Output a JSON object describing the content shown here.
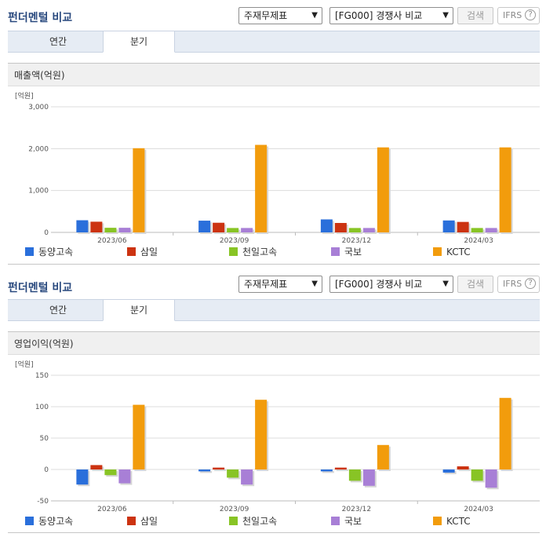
{
  "sections": [
    {
      "title": "펀더멘털 비교",
      "select1": "주재무제표",
      "select2": "[FG000] 경쟁사 비교",
      "search_label": "검색",
      "ifrs_label": "IFRS",
      "ifrs_help": "?",
      "tabs": [
        {
          "label": "연간"
        },
        {
          "label": "분기"
        }
      ],
      "active_tab": 1,
      "panel_title": "매출액(억원)"
    },
    {
      "title": "펀더멘털 비교",
      "select1": "주재무제표",
      "select2": "[FG000] 경쟁사 비교",
      "search_label": "검색",
      "ifrs_label": "IFRS",
      "ifrs_help": "?",
      "tabs": [
        {
          "label": "연간"
        },
        {
          "label": "분기"
        }
      ],
      "active_tab": 1,
      "panel_title": "영업이익(억원)"
    }
  ],
  "colors": {
    "동양고속": "#2a6fdb",
    "삼일": "#cc3311",
    "천일고속": "#88c425",
    "국보": "#a87fd6",
    "KCTC": "#f29c0c"
  },
  "chart_data": [
    {
      "type": "bar",
      "title": "매출액(억원)",
      "unit_label": "[억원]",
      "categories": [
        "2023/06",
        "2023/09",
        "2023/12",
        "2024/03"
      ],
      "ylim": [
        0,
        3000
      ],
      "yticks": [
        0,
        1000,
        2000,
        3000
      ],
      "ytick_labels": [
        "0",
        "1,000",
        "2,000",
        "3,000"
      ],
      "grid": true,
      "legend_position": "bottom",
      "series": [
        {
          "name": "동양고속",
          "values": [
            290,
            280,
            310,
            285
          ]
        },
        {
          "name": "삼일",
          "values": [
            255,
            230,
            225,
            250
          ]
        },
        {
          "name": "천일고속",
          "values": [
            110,
            105,
            105,
            105
          ]
        },
        {
          "name": "국보",
          "values": [
            110,
            105,
            105,
            105
          ]
        },
        {
          "name": "KCTC",
          "values": [
            2010,
            2090,
            2030,
            2030
          ]
        }
      ]
    },
    {
      "type": "bar",
      "title": "영업이익(억원)",
      "unit_label": "[억원]",
      "categories": [
        "2023/06",
        "2023/09",
        "2023/12",
        "2024/03"
      ],
      "ylim": [
        -50,
        150
      ],
      "yticks": [
        -50,
        0,
        50,
        100,
        150
      ],
      "ytick_labels": [
        "-50",
        "0",
        "50",
        "100",
        "150"
      ],
      "grid": true,
      "legend_position": "bottom",
      "series": [
        {
          "name": "동양고속",
          "values": [
            -24,
            -3,
            -3,
            -5
          ]
        },
        {
          "name": "삼일",
          "values": [
            7,
            3,
            3,
            5
          ]
        },
        {
          "name": "천일고속",
          "values": [
            -9,
            -13,
            -18,
            -18
          ]
        },
        {
          "name": "국보",
          "values": [
            -22,
            -24,
            -26,
            -29
          ]
        },
        {
          "name": "KCTC",
          "values": [
            103,
            111,
            39,
            114
          ]
        }
      ]
    }
  ]
}
